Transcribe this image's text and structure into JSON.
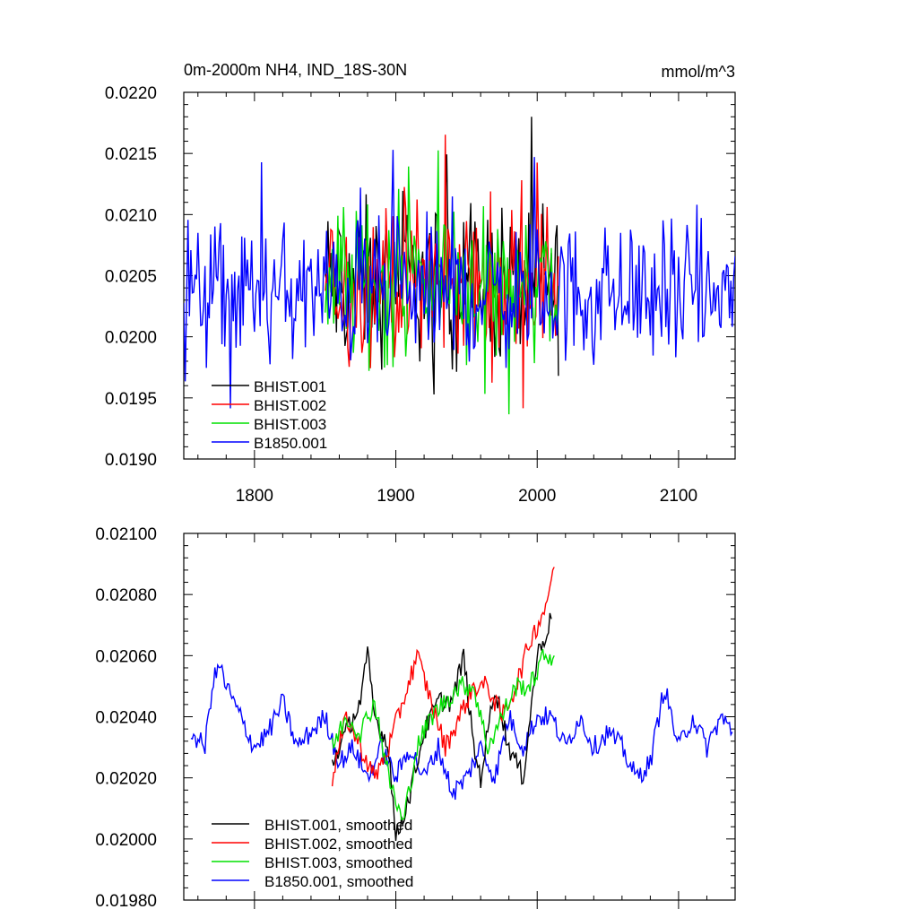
{
  "chart_data": [
    {
      "type": "line",
      "title": "0m-2000m NH4, IND_18S-30N",
      "units": "mmol/m^3",
      "xlim": [
        1750,
        2140
      ],
      "ylim": [
        0.019,
        0.022
      ],
      "xticks": [
        1800,
        1900,
        2000,
        2100
      ],
      "xtick_labels": [
        "1800",
        "1900",
        "2000",
        "2100"
      ],
      "yticks": [
        0.019,
        0.0195,
        0.02,
        0.0205,
        0.021,
        0.0215,
        0.022
      ],
      "ytick_labels": [
        "0.0190",
        "0.0195",
        "0.0200",
        "0.0205",
        "0.0210",
        "0.0215",
        "0.0220"
      ],
      "legend_position": "bottom-left",
      "series": [
        {
          "name": "BHIST.001",
          "color": "#000000",
          "x_start": 1850,
          "x_end": 2015,
          "summary": {
            "center": 0.02045,
            "spread": 0.0004,
            "max": 0.0218,
            "min": 0.01915
          }
        },
        {
          "name": "BHIST.002",
          "color": "#ff0000",
          "x_start": 1850,
          "x_end": 2015,
          "summary": {
            "center": 0.02045,
            "spread": 0.0004,
            "max": 0.02175,
            "min": 0.01925
          }
        },
        {
          "name": "BHIST.003",
          "color": "#00e000",
          "x_start": 1850,
          "x_end": 2015,
          "summary": {
            "center": 0.02045,
            "spread": 0.0004,
            "max": 0.02172,
            "min": 0.01918
          }
        },
        {
          "name": "B1850.001",
          "color": "#0000ff",
          "x_start": 1750,
          "x_end": 2140,
          "summary": {
            "center": 0.02035,
            "spread": 0.00035,
            "max": 0.02153,
            "min": 0.01912
          }
        }
      ]
    },
    {
      "type": "line",
      "title": "",
      "xlim": [
        1750,
        2140
      ],
      "ylim": [
        0.0198,
        0.021
      ],
      "xticks": [
        1800,
        1900,
        2000,
        2100
      ],
      "yticks": [
        0.0198,
        0.02,
        0.0202,
        0.0204,
        0.0206,
        0.0208,
        0.021
      ],
      "ytick_labels": [
        "0.01980",
        "0.02000",
        "0.02020",
        "0.02040",
        "0.02060",
        "0.02080",
        "0.02100"
      ],
      "legend_position": "bottom-left",
      "series": [
        {
          "name": "BHIST.001, smoothed",
          "color": "#000000",
          "x": [
            1855,
            1865,
            1875,
            1880,
            1885,
            1895,
            1900,
            1910,
            1920,
            1930,
            1940,
            1948,
            1955,
            1960,
            1970,
            1980,
            1990,
            2000,
            2010
          ],
          "y": [
            0.02025,
            0.02035,
            0.02045,
            0.0206,
            0.0204,
            0.0203,
            0.02,
            0.02015,
            0.02035,
            0.02045,
            0.02045,
            0.0206,
            0.0203,
            0.0202,
            0.0205,
            0.0203,
            0.0202,
            0.0206,
            0.02072
          ]
        },
        {
          "name": "BHIST.002, smoothed",
          "color": "#ff0000",
          "x": [
            1855,
            1865,
            1875,
            1885,
            1895,
            1905,
            1915,
            1925,
            1935,
            1945,
            1955,
            1965,
            1975,
            1985,
            1995,
            2005,
            2012
          ],
          "y": [
            0.0202,
            0.0204,
            0.0203,
            0.0202,
            0.0203,
            0.02045,
            0.0206,
            0.02045,
            0.0203,
            0.0204,
            0.0205,
            0.0205,
            0.0204,
            0.0205,
            0.02065,
            0.02075,
            0.02089
          ]
        },
        {
          "name": "BHIST.003, smoothed",
          "color": "#00e000",
          "x": [
            1855,
            1865,
            1875,
            1885,
            1895,
            1905,
            1915,
            1925,
            1935,
            1945,
            1955,
            1965,
            1975,
            1985,
            1995,
            2005,
            2012
          ],
          "y": [
            0.0203,
            0.0204,
            0.02035,
            0.02045,
            0.0202,
            0.02005,
            0.0203,
            0.0204,
            0.02045,
            0.0205,
            0.0205,
            0.0203,
            0.0204,
            0.0205,
            0.0205,
            0.0206,
            0.0206
          ]
        },
        {
          "name": "B1850.001, smoothed",
          "color": "#0000ff",
          "x": [
            1755,
            1765,
            1770,
            1775,
            1780,
            1790,
            1800,
            1810,
            1820,
            1830,
            1840,
            1850,
            1860,
            1870,
            1880,
            1890,
            1900,
            1910,
            1920,
            1930,
            1940,
            1950,
            1960,
            1970,
            1980,
            1990,
            2000,
            2010,
            2020,
            2030,
            2040,
            2050,
            2060,
            2070,
            2080,
            2090,
            2100,
            2110,
            2120,
            2130,
            2138
          ],
          "y": [
            0.02035,
            0.0203,
            0.0205,
            0.02057,
            0.0205,
            0.0204,
            0.0203,
            0.02035,
            0.02045,
            0.0203,
            0.02035,
            0.0204,
            0.02025,
            0.0203,
            0.0202,
            0.0203,
            0.0202,
            0.0203,
            0.0202,
            0.0203,
            0.02015,
            0.0202,
            0.0203,
            0.0202,
            0.0204,
            0.0203,
            0.0204,
            0.0204,
            0.0203,
            0.0204,
            0.0203,
            0.02035,
            0.0203,
            0.0202,
            0.02025,
            0.0205,
            0.0203,
            0.0204,
            0.0203,
            0.0204,
            0.02035
          ]
        }
      ]
    }
  ]
}
